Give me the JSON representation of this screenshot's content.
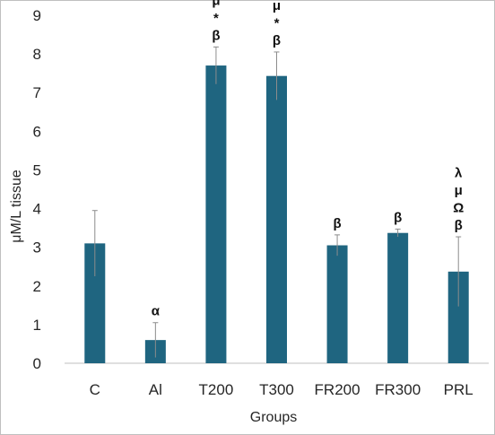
{
  "chart_data": {
    "type": "bar",
    "title": "",
    "xlabel": "Groups",
    "ylabel": "μM/L tissue",
    "ylim": [
      0,
      9
    ],
    "yticks": [
      0,
      1,
      2,
      3,
      4,
      5,
      6,
      7,
      8,
      9
    ],
    "grid": false,
    "bar_color": "#1f6580",
    "error_color": "#8c8c8c",
    "categories": [
      "C",
      "Al",
      "T200",
      "T300",
      "FR200",
      "FR300",
      "PRL"
    ],
    "values": [
      3.1,
      0.6,
      7.7,
      7.43,
      3.05,
      3.37,
      2.37
    ],
    "errors": [
      0.85,
      0.45,
      0.48,
      0.62,
      0.27,
      0.1,
      0.9
    ],
    "annotations": [
      [],
      [
        "α"
      ],
      [
        "μ",
        "*",
        "β"
      ],
      [
        "μ",
        "*",
        "β"
      ],
      [
        "β"
      ],
      [
        "β"
      ],
      [
        "λ",
        "μ",
        "Ω",
        "β"
      ]
    ]
  }
}
